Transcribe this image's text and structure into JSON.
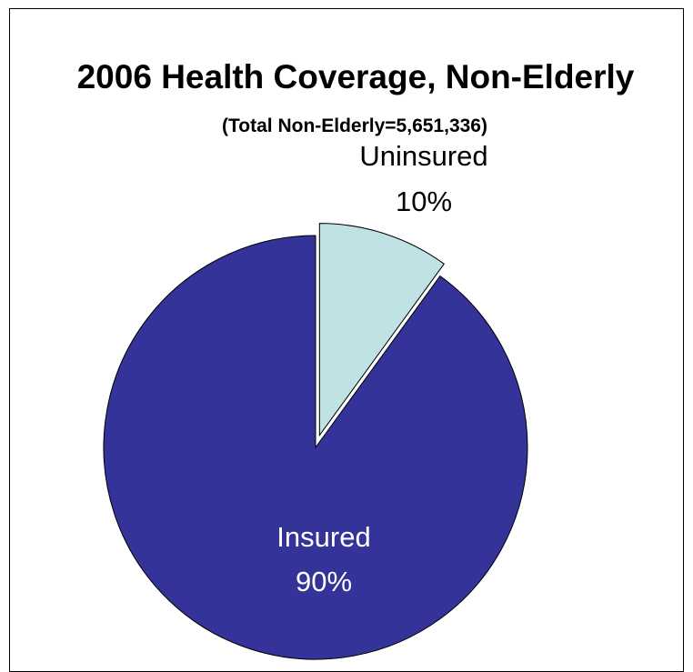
{
  "chart_data": {
    "type": "pie",
    "title": "2006 Health Coverage, Non-Elderly",
    "subtitle": "(Total Non-Elderly=5,651,336)",
    "slices": [
      {
        "label": "Uninsured",
        "value": 10,
        "value_label": "10%",
        "color": "#bfe3e5",
        "exploded": true,
        "label_color": "#000000"
      },
      {
        "label": "Insured",
        "value": 90,
        "value_label": "90%",
        "color": "#333399",
        "exploded": false,
        "label_color": "#ffffff"
      }
    ]
  }
}
